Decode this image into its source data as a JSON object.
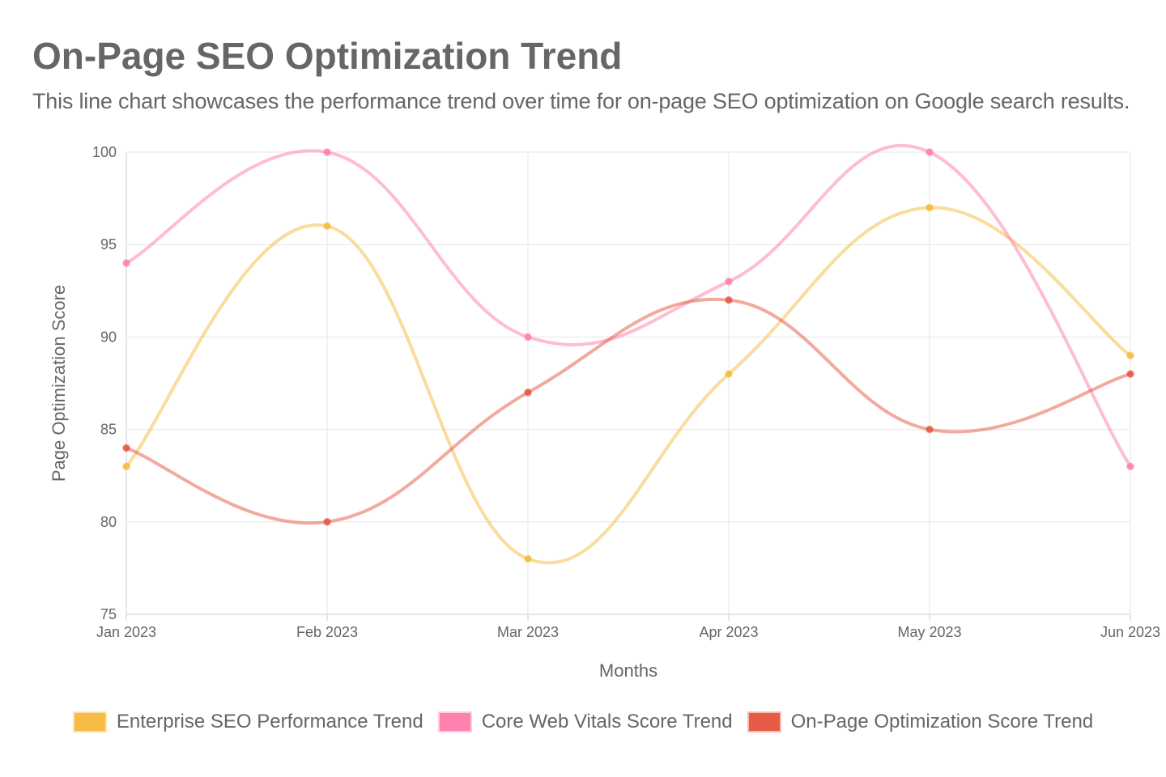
{
  "title": "On-Page SEO Optimization Trend",
  "subtitle": "This line chart showcases the performance trend over time for on-page SEO optimization on Google search results.",
  "chart_data": {
    "type": "line",
    "categories": [
      "Jan 2023",
      "Feb 2023",
      "Mar 2023",
      "Apr 2023",
      "May 2023",
      "Jun 2023"
    ],
    "xlabel": "Months",
    "ylabel": "Page Optimization Score",
    "ylim": [
      75,
      100
    ],
    "yticks": [
      75,
      80,
      85,
      90,
      95,
      100
    ],
    "grid": true,
    "legend_position": "bottom",
    "series": [
      {
        "name": "Enterprise SEO Performance Trend",
        "values": [
          83,
          96,
          78,
          88,
          97,
          89
        ],
        "color": "#F6B93B"
      },
      {
        "name": "Core Web Vitals Score Trend",
        "values": [
          94,
          100,
          90,
          93,
          100,
          83
        ],
        "color": "#FF7BAC"
      },
      {
        "name": "On-Page Optimization Score Trend",
        "values": [
          84,
          80,
          87,
          92,
          85,
          88
        ],
        "color": "#E5533D"
      }
    ]
  }
}
